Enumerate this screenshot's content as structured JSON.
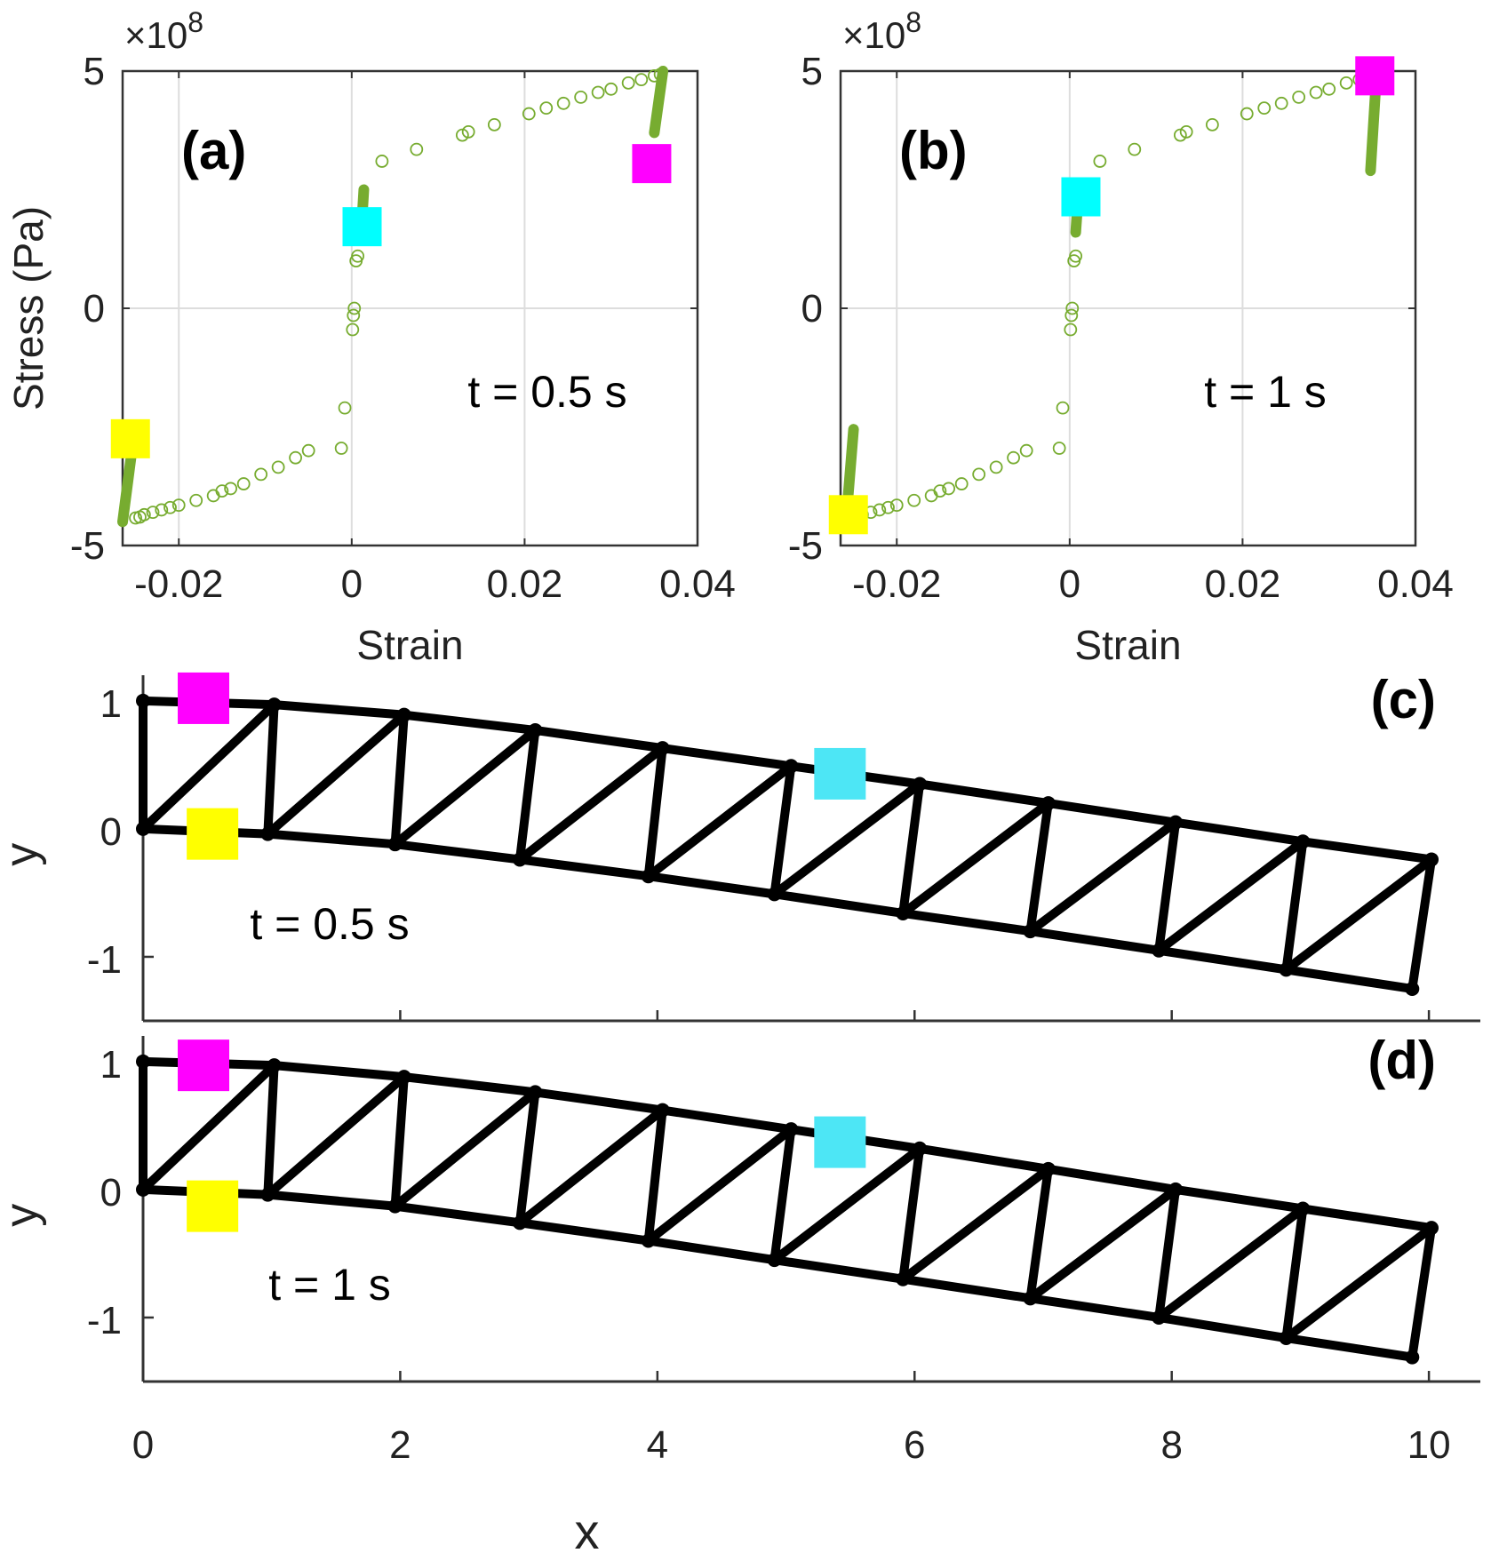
{
  "colors": {
    "scatter": "#77AC30",
    "magenta": "#FF00FF",
    "cyan": "#00FFFF",
    "cyan_truss": "#4DE6F5",
    "yellow": "#FFFF00",
    "truss": "#000000",
    "grid": "#dddddd",
    "axis": "#333333"
  },
  "chart_data": [
    {
      "id": "a",
      "type": "scatter",
      "panel_label": "(a)",
      "annotation": "t = 0.5 s",
      "xlabel": "Strain",
      "ylabel": "Stress (Pa)",
      "xlim": [
        -0.0265,
        0.04
      ],
      "ylim": [
        -5,
        5
      ],
      "y_exponent": "×10^8",
      "xticks": [
        -0.02,
        0,
        0.02,
        0.04
      ],
      "xtick_labels": [
        "-0.02",
        "0",
        "0.02",
        "0.04"
      ],
      "yticks": [
        -5,
        0,
        5
      ],
      "ytick_labels": [
        "-5",
        "0",
        "5"
      ],
      "grid": true,
      "series": [
        {
          "name": "hysteresis points",
          "style": "open-circle",
          "points": [
            [
              -0.025,
              -4.42
            ],
            [
              -0.0245,
              -4.4
            ],
            [
              -0.024,
              -4.35
            ],
            [
              -0.023,
              -4.3
            ],
            [
              -0.022,
              -4.25
            ],
            [
              -0.021,
              -4.2
            ],
            [
              -0.02,
              -4.15
            ],
            [
              -0.018,
              -4.05
            ],
            [
              -0.016,
              -3.95
            ],
            [
              -0.015,
              -3.85
            ],
            [
              -0.014,
              -3.8
            ],
            [
              -0.0125,
              -3.7
            ],
            [
              -0.0105,
              -3.5
            ],
            [
              -0.0085,
              -3.35
            ],
            [
              -0.0065,
              -3.15
            ],
            [
              -0.005,
              -3.0
            ],
            [
              -0.0012,
              -2.95
            ],
            [
              -0.0008,
              -2.1
            ],
            [
              0.0001,
              -0.45
            ],
            [
              0.0002,
              -0.15
            ],
            [
              0.0003,
              0.0
            ],
            [
              0.0005,
              1.0
            ],
            [
              0.0007,
              1.1
            ],
            [
              0.0035,
              3.1
            ],
            [
              0.0075,
              3.35
            ],
            [
              0.0128,
              3.65
            ],
            [
              0.0135,
              3.72
            ],
            [
              0.0165,
              3.87
            ],
            [
              0.0205,
              4.1
            ],
            [
              0.0225,
              4.22
            ],
            [
              0.0245,
              4.32
            ],
            [
              0.0265,
              4.45
            ],
            [
              0.0285,
              4.55
            ],
            [
              0.03,
              4.62
            ],
            [
              0.032,
              4.75
            ],
            [
              0.0335,
              4.82
            ],
            [
              0.035,
              4.9
            ],
            [
              0.0357,
              4.93
            ]
          ]
        },
        {
          "name": "current state path",
          "style": "thick-line",
          "segments": [
            [
              [
                -0.0265,
                -4.5
              ],
              [
                -0.0255,
                -3.1
              ]
            ],
            [
              [
                0.0012,
                1.9
              ],
              [
                0.0014,
                2.5
              ]
            ],
            [
              [
                0.035,
                3.7
              ],
              [
                0.036,
                5.0
              ]
            ]
          ]
        }
      ],
      "markers": [
        {
          "color": "magenta",
          "x": 0.0347,
          "y": 3.05
        },
        {
          "color": "cyan",
          "x": 0.0012,
          "y": 1.72
        },
        {
          "color": "yellow",
          "x": -0.0256,
          "y": -2.75
        }
      ]
    },
    {
      "id": "b",
      "type": "scatter",
      "panel_label": "(b)",
      "annotation": "t = 1 s",
      "xlabel": "Strain",
      "ylabel": "",
      "xlim": [
        -0.0265,
        0.04
      ],
      "ylim": [
        -5,
        5
      ],
      "y_exponent": "×10^8",
      "xticks": [
        -0.02,
        0,
        0.02,
        0.04
      ],
      "xtick_labels": [
        "-0.02",
        "0",
        "0.02",
        "0.04"
      ],
      "yticks": [
        -5,
        0,
        5
      ],
      "ytick_labels": [
        "-5",
        "0",
        "5"
      ],
      "grid": true,
      "series": [
        {
          "name": "hysteresis points",
          "style": "open-circle",
          "points": [
            [
              -0.0245,
              -4.4
            ],
            [
              -0.024,
              -4.35
            ],
            [
              -0.023,
              -4.3
            ],
            [
              -0.022,
              -4.25
            ],
            [
              -0.021,
              -4.2
            ],
            [
              -0.02,
              -4.15
            ],
            [
              -0.018,
              -4.05
            ],
            [
              -0.016,
              -3.95
            ],
            [
              -0.015,
              -3.85
            ],
            [
              -0.014,
              -3.8
            ],
            [
              -0.0125,
              -3.7
            ],
            [
              -0.0105,
              -3.5
            ],
            [
              -0.0085,
              -3.35
            ],
            [
              -0.0065,
              -3.15
            ],
            [
              -0.005,
              -3.0
            ],
            [
              -0.0012,
              -2.95
            ],
            [
              -0.0008,
              -2.1
            ],
            [
              0.0001,
              -0.45
            ],
            [
              0.0002,
              -0.15
            ],
            [
              0.0003,
              0.0
            ],
            [
              0.0005,
              1.0
            ],
            [
              0.0007,
              1.1
            ],
            [
              0.0035,
              3.1
            ],
            [
              0.0075,
              3.35
            ],
            [
              0.0128,
              3.65
            ],
            [
              0.0135,
              3.72
            ],
            [
              0.0165,
              3.87
            ],
            [
              0.0205,
              4.1
            ],
            [
              0.0225,
              4.22
            ],
            [
              0.0245,
              4.32
            ],
            [
              0.0265,
              4.45
            ],
            [
              0.0285,
              4.55
            ],
            [
              0.03,
              4.62
            ],
            [
              0.032,
              4.75
            ],
            [
              0.0335,
              4.82
            ]
          ]
        },
        {
          "name": "current state path",
          "style": "thick-line",
          "segments": [
            [
              [
                -0.0258,
                -4.35
              ],
              [
                -0.025,
                -2.55
              ]
            ],
            [
              [
                0.0007,
                1.6
              ],
              [
                0.001,
                2.4
              ]
            ],
            [
              [
                0.0348,
                2.9
              ],
              [
                0.0355,
                4.95
              ]
            ]
          ]
        }
      ],
      "markers": [
        {
          "color": "magenta",
          "x": 0.0353,
          "y": 4.9
        },
        {
          "color": "cyan",
          "x": 0.0013,
          "y": 2.35
        },
        {
          "color": "yellow",
          "x": -0.0256,
          "y": -4.35
        }
      ]
    },
    {
      "id": "c",
      "type": "truss",
      "panel_label": "(c)",
      "annotation": "t = 0.5 s",
      "xlabel": "",
      "ylabel": "y",
      "xlim": [
        0,
        10.4
      ],
      "ylim": [
        -1.5,
        1.2
      ],
      "yticks": [
        -1,
        0,
        1
      ],
      "ytick_labels": [
        "-1",
        "0",
        "1"
      ],
      "xticks": [
        0,
        2,
        4,
        6,
        8,
        10
      ],
      "bottom_nodes": [
        [
          0,
          0
        ],
        [
          0.97,
          -0.04
        ],
        [
          1.96,
          -0.12
        ],
        [
          2.93,
          -0.24
        ],
        [
          3.93,
          -0.37
        ],
        [
          4.91,
          -0.51
        ],
        [
          5.91,
          -0.66
        ],
        [
          6.9,
          -0.8
        ],
        [
          7.9,
          -0.95
        ],
        [
          8.89,
          -1.1
        ],
        [
          9.87,
          -1.25
        ]
      ],
      "top_nodes": [
        [
          0,
          1
        ],
        [
          1.02,
          0.97
        ],
        [
          2.03,
          0.89
        ],
        [
          3.05,
          0.77
        ],
        [
          4.04,
          0.63
        ],
        [
          5.04,
          0.49
        ],
        [
          6.04,
          0.35
        ],
        [
          7.04,
          0.2
        ],
        [
          8.03,
          0.05
        ],
        [
          9.02,
          -0.1
        ],
        [
          10.02,
          -0.24
        ]
      ],
      "markers": [
        {
          "color": "magenta",
          "x": 0.47,
          "y": 1.02
        },
        {
          "color": "cyan_truss",
          "x": 5.42,
          "y": 0.43
        },
        {
          "color": "yellow",
          "x": 0.54,
          "y": -0.04
        }
      ]
    },
    {
      "id": "d",
      "type": "truss",
      "panel_label": "(d)",
      "annotation": "t = 1 s",
      "xlabel": "x",
      "ylabel": "y",
      "xlim": [
        0,
        10.4
      ],
      "ylim": [
        -1.5,
        1.2
      ],
      "yticks": [
        -1,
        0,
        1
      ],
      "ytick_labels": [
        "-1",
        "0",
        "1"
      ],
      "xticks": [
        0,
        2,
        4,
        6,
        8,
        10
      ],
      "xtick_labels": [
        "0",
        "2",
        "4",
        "6",
        "8",
        "10"
      ],
      "bottom_nodes": [
        [
          0,
          0
        ],
        [
          0.97,
          -0.04
        ],
        [
          1.96,
          -0.13
        ],
        [
          2.93,
          -0.26
        ],
        [
          3.93,
          -0.4
        ],
        [
          4.91,
          -0.55
        ],
        [
          5.91,
          -0.7
        ],
        [
          6.9,
          -0.85
        ],
        [
          7.9,
          -1.0
        ],
        [
          8.89,
          -1.16
        ],
        [
          9.87,
          -1.31
        ]
      ],
      "top_nodes": [
        [
          0,
          1
        ],
        [
          1.02,
          0.97
        ],
        [
          2.03,
          0.88
        ],
        [
          3.05,
          0.76
        ],
        [
          4.04,
          0.62
        ],
        [
          5.04,
          0.47
        ],
        [
          6.04,
          0.32
        ],
        [
          7.04,
          0.16
        ],
        [
          8.03,
          0.0
        ],
        [
          9.02,
          -0.15
        ],
        [
          10.02,
          -0.3
        ]
      ],
      "markers": [
        {
          "color": "magenta",
          "x": 0.47,
          "y": 0.97
        },
        {
          "color": "cyan_truss",
          "x": 5.42,
          "y": 0.37
        },
        {
          "color": "yellow",
          "x": 0.54,
          "y": -0.13
        }
      ]
    }
  ]
}
